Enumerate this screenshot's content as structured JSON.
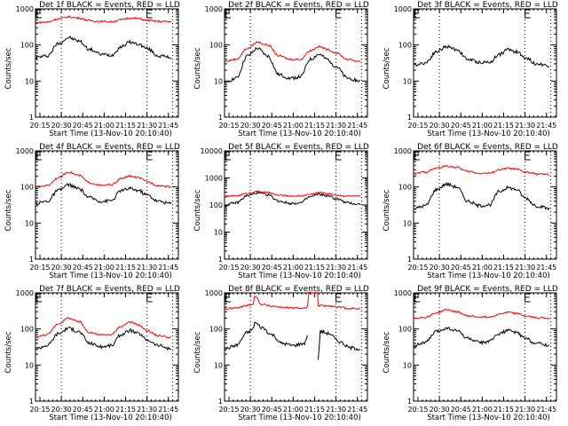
{
  "figure": {
    "panel_title_suffix": "BLACK = Events, RED = LLD",
    "xlabel": "Start Time (13-Nov-10 20:10:40)",
    "ylabel": "Counts/sec",
    "colors": {
      "events": "#000000",
      "lld": "#ff0000"
    }
  },
  "chart_data": [
    {
      "type": "line",
      "title": "Det 1f BLACK = Events, RED = LLD",
      "xlabel": "Start Time (13-Nov-10 20:10:40)",
      "ylabel": "Counts/sec",
      "yscale": "log",
      "ylim": [
        1,
        1000
      ],
      "yticks": [
        "1",
        "10",
        "100",
        "1000"
      ],
      "xlim_minutes": [
        20.2,
        21.87
      ],
      "xticks": [
        "20:15",
        "20:30",
        "20:45",
        "21:00",
        "21:15",
        "21:30",
        "21:45"
      ],
      "markers_time": [
        "20:30",
        "21:30",
        "21:48"
      ],
      "x": [
        "20:12",
        "20:20",
        "20:28",
        "20:35",
        "20:42",
        "20:50",
        "20:58",
        "21:05",
        "21:12",
        "21:18",
        "21:24",
        "21:30",
        "21:38",
        "21:47"
      ],
      "series": [
        {
          "name": "Events",
          "color": "#000000",
          "values": [
            45,
            50,
            110,
            160,
            130,
            75,
            55,
            52,
            90,
            120,
            105,
            80,
            50,
            45
          ]
        },
        {
          "name": "LLD",
          "color": "#ff0000",
          "values": [
            420,
            430,
            530,
            600,
            560,
            470,
            450,
            440,
            500,
            560,
            540,
            480,
            450,
            440
          ]
        }
      ]
    },
    {
      "type": "line",
      "title": "Det 2f BLACK = Events, RED = LLD",
      "xlabel": "Start Time (13-Nov-10 20:10:40)",
      "ylabel": "Counts/sec",
      "yscale": "log",
      "ylim": [
        1,
        1000
      ],
      "yticks": [
        "1",
        "10",
        "100",
        "1000"
      ],
      "xticks": [
        "20:15",
        "20:30",
        "20:45",
        "21:00",
        "21:15",
        "21:30",
        "21:45"
      ],
      "markers_time": [
        "20:30",
        "21:30",
        "21:48"
      ],
      "x": [
        "20:12",
        "20:20",
        "20:28",
        "20:35",
        "20:42",
        "20:50",
        "20:58",
        "21:05",
        "21:12",
        "21:18",
        "21:24",
        "21:30",
        "21:38",
        "21:47"
      ],
      "series": [
        {
          "name": "Events",
          "color": "#000000",
          "values": [
            9,
            12,
            50,
            80,
            50,
            15,
            12,
            13,
            40,
            55,
            40,
            25,
            12,
            10
          ]
        },
        {
          "name": "LLD",
          "color": "#ff0000",
          "values": [
            35,
            40,
            80,
            120,
            100,
            50,
            40,
            40,
            70,
            90,
            75,
            60,
            40,
            35
          ]
        }
      ]
    },
    {
      "type": "line",
      "title": "Det 3f BLACK = Events, RED = LLD",
      "xlabel": "Start Time (13-Nov-10 20:10:40)",
      "ylabel": "Counts/sec",
      "yscale": "log",
      "ylim": [
        1,
        1000
      ],
      "yticks": [
        "1",
        "10",
        "100",
        "1000"
      ],
      "xticks": [
        "20:15",
        "20:30",
        "20:45",
        "21:00",
        "21:15",
        "21:30",
        "21:45"
      ],
      "markers_time": [
        "20:30",
        "21:30",
        "21:48"
      ],
      "x": [
        "20:12",
        "20:20",
        "20:28",
        "20:35",
        "20:42",
        "20:50",
        "20:58",
        "21:05",
        "21:12",
        "21:18",
        "21:24",
        "21:30",
        "21:38",
        "21:47"
      ],
      "series": [
        {
          "name": "Events",
          "color": "#000000",
          "values": [
            28,
            32,
            65,
            90,
            75,
            40,
            33,
            33,
            55,
            75,
            65,
            45,
            30,
            27
          ]
        }
      ]
    },
    {
      "type": "line",
      "title": "Det 4f BLACK = Events, RED = LLD",
      "xlabel": "Start Time (13-Nov-10 20:10:40)",
      "ylabel": "Counts/sec",
      "yscale": "log",
      "ylim": [
        1,
        1000
      ],
      "yticks": [
        "1",
        "10",
        "100",
        "1000"
      ],
      "xticks": [
        "20:15",
        "20:30",
        "20:45",
        "21:00",
        "21:15",
        "21:30",
        "21:45"
      ],
      "markers_time": [
        "20:30",
        "21:30",
        "21:48"
      ],
      "x": [
        "20:12",
        "20:20",
        "20:28",
        "20:35",
        "20:42",
        "20:50",
        "20:58",
        "21:05",
        "21:12",
        "21:18",
        "21:24",
        "21:30",
        "21:38",
        "21:47"
      ],
      "series": [
        {
          "name": "Events",
          "color": "#000000",
          "values": [
            35,
            40,
            80,
            115,
            90,
            50,
            40,
            42,
            80,
            90,
            80,
            60,
            40,
            35
          ]
        },
        {
          "name": "LLD",
          "color": "#ff0000",
          "values": [
            100,
            110,
            180,
            260,
            210,
            130,
            110,
            115,
            170,
            200,
            180,
            140,
            110,
            100
          ]
        }
      ]
    },
    {
      "type": "line",
      "title": "Det 5f BLACK = Events, RED = LLD",
      "xlabel": "Start Time (13-Nov-10 20:10:40)",
      "ylabel": "Counts/sec",
      "yscale": "log",
      "ylim": [
        1,
        10000
      ],
      "yticks": [
        "1",
        "10",
        "100",
        "1000",
        "10000"
      ],
      "xticks": [
        "20:15",
        "20:30",
        "20:45",
        "21:00",
        "21:15",
        "21:30",
        "21:45"
      ],
      "markers_time": [
        "20:30",
        "21:30",
        "21:48"
      ],
      "x": [
        "20:12",
        "20:20",
        "20:28",
        "20:35",
        "20:42",
        "20:50",
        "20:58",
        "21:05",
        "21:12",
        "21:18",
        "21:24",
        "21:30",
        "21:38",
        "21:47"
      ],
      "series": [
        {
          "name": "Events",
          "color": "#000000",
          "values": [
            100,
            120,
            220,
            280,
            240,
            140,
            115,
            120,
            200,
            250,
            220,
            170,
            120,
            105
          ]
        },
        {
          "name": "LLD",
          "color": "#ff0000",
          "values": [
            210,
            220,
            270,
            320,
            290,
            230,
            215,
            215,
            250,
            290,
            270,
            230,
            215,
            210
          ]
        }
      ]
    },
    {
      "type": "line",
      "title": "Det 6f BLACK = Events, RED = LLD",
      "xlabel": "Start Time (13-Nov-10 20:10:40)",
      "ylabel": "Counts/sec",
      "yscale": "log",
      "ylim": [
        1,
        1000
      ],
      "yticks": [
        "1",
        "10",
        "100",
        "1000"
      ],
      "xticks": [
        "20:15",
        "20:30",
        "20:45",
        "21:00",
        "21:15",
        "21:30",
        "21:45"
      ],
      "markers_time": [
        "20:30",
        "21:30",
        "21:48"
      ],
      "x": [
        "20:12",
        "20:20",
        "20:28",
        "20:35",
        "20:42",
        "20:50",
        "20:58",
        "21:05",
        "21:12",
        "21:18",
        "21:24",
        "21:30",
        "21:38",
        "21:47"
      ],
      "series": [
        {
          "name": "Events",
          "color": "#000000",
          "values": [
            25,
            30,
            85,
            120,
            100,
            40,
            30,
            32,
            75,
            95,
            85,
            50,
            30,
            25
          ]
        },
        {
          "name": "LLD",
          "color": "#ff0000",
          "values": [
            230,
            260,
            330,
            380,
            350,
            270,
            240,
            240,
            300,
            330,
            310,
            260,
            230,
            220
          ]
        }
      ]
    },
    {
      "type": "line",
      "title": "Det 7f BLACK = Events, RED = LLD",
      "xlabel": "Start Time (13-Nov-10 20:10:40)",
      "ylabel": "Counts/sec",
      "yscale": "log",
      "ylim": [
        1,
        1000
      ],
      "yticks": [
        "1",
        "10",
        "100",
        "1000"
      ],
      "xticks": [
        "20:15",
        "20:30",
        "20:45",
        "21:00",
        "21:15",
        "21:30",
        "21:45"
      ],
      "markers_time": [
        "20:30",
        "21:30",
        "21:48"
      ],
      "x": [
        "20:12",
        "20:20",
        "20:28",
        "20:35",
        "20:42",
        "20:50",
        "20:58",
        "21:05",
        "21:12",
        "21:18",
        "21:24",
        "21:30",
        "21:38",
        "21:47"
      ],
      "series": [
        {
          "name": "Events",
          "color": "#000000",
          "values": [
            28,
            35,
            75,
            105,
            85,
            40,
            32,
            35,
            70,
            90,
            75,
            50,
            35,
            28
          ]
        },
        {
          "name": "LLD",
          "color": "#ff0000",
          "values": [
            60,
            70,
            140,
            200,
            160,
            80,
            68,
            70,
            120,
            155,
            130,
            90,
            65,
            58
          ]
        }
      ]
    },
    {
      "type": "line",
      "title": "Det 8f BLACK = Events, RED = LLD",
      "xlabel": "Start Time (13-Nov-10 20:10:40)",
      "ylabel": "Counts/sec",
      "yscale": "log",
      "ylim": [
        1,
        1000
      ],
      "yticks": [
        "1",
        "10",
        "100",
        "1000"
      ],
      "xticks": [
        "20:15",
        "20:30",
        "20:45",
        "21:00",
        "21:15",
        "21:30",
        "21:45"
      ],
      "markers_time": [
        "20:30",
        "21:30",
        "21:48"
      ],
      "x": [
        "20:12",
        "20:20",
        "20:28",
        "20:32",
        "20:33",
        "20:38",
        "20:45",
        "20:52",
        "21:00",
        "21:08",
        "21:10",
        "21:11",
        "21:17",
        "21:17.5",
        "21:19",
        "21:25",
        "21:32",
        "21:40",
        "21:47"
      ],
      "series": [
        {
          "name": "Events",
          "color": "#000000",
          "values": [
            28,
            35,
            80,
            100,
            150,
            110,
            70,
            40,
            35,
            40,
            65,
            null,
            null,
            14,
            85,
            75,
            45,
            30,
            28
          ]
        },
        {
          "name": "LLD",
          "color": "#ff0000",
          "values": [
            360,
            380,
            450,
            500,
            800,
            480,
            430,
            400,
            380,
            380,
            400,
            1000,
            1000,
            450,
            440,
            430,
            400,
            370,
            360
          ]
        }
      ]
    },
    {
      "type": "line",
      "title": "Det 9f BLACK = Events, RED = LLD",
      "xlabel": "Start Time (13-Nov-10 20:10:40)",
      "ylabel": "Counts/sec",
      "yscale": "log",
      "ylim": [
        1,
        1000
      ],
      "yticks": [
        "1",
        "10",
        "100",
        "1000"
      ],
      "xticks": [
        "20:15",
        "20:30",
        "20:45",
        "21:00",
        "21:15",
        "21:30",
        "21:45"
      ],
      "markers_time": [
        "20:30",
        "21:30",
        "21:48"
      ],
      "x": [
        "20:12",
        "20:20",
        "20:28",
        "20:35",
        "20:42",
        "20:50",
        "20:58",
        "21:05",
        "21:12",
        "21:18",
        "21:24",
        "21:30",
        "21:38",
        "21:47"
      ],
      "series": [
        {
          "name": "Events",
          "color": "#000000",
          "values": [
            35,
            42,
            85,
            105,
            90,
            55,
            42,
            45,
            75,
            90,
            80,
            55,
            40,
            36
          ]
        },
        {
          "name": "LLD",
          "color": "#ff0000",
          "values": [
            200,
            210,
            280,
            340,
            300,
            230,
            215,
            215,
            260,
            290,
            270,
            230,
            205,
            200
          ]
        }
      ]
    }
  ]
}
